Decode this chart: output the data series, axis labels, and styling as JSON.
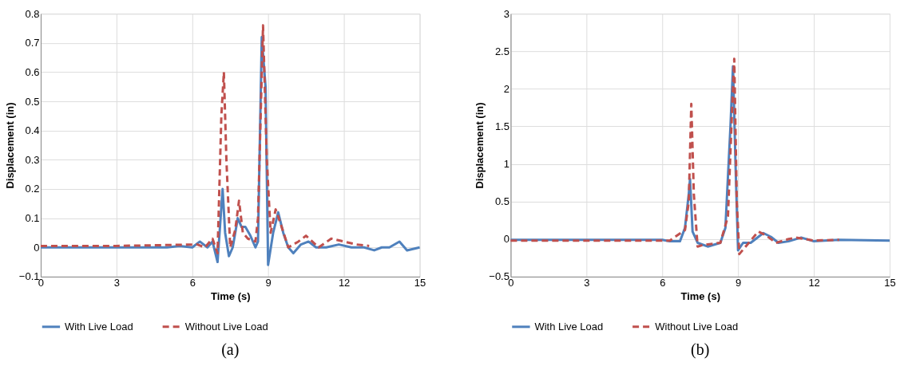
{
  "chart_data": [
    {
      "type": "line",
      "xlabel": "Time (s)",
      "ylabel": "Displacement (in)",
      "xlim": [
        0,
        15
      ],
      "xticks": [
        0,
        3,
        6,
        9,
        12,
        15
      ],
      "ylim": [
        -0.1,
        0.8
      ],
      "yticks": [
        -0.1,
        0,
        0.1,
        0.2,
        0.3,
        0.4,
        0.5,
        0.6,
        0.7,
        0.8
      ],
      "grid": true,
      "legend": "bottom",
      "annotations": [
        "(a)"
      ],
      "series": [
        {
          "name": "With Live Load",
          "color": "#4f81bd",
          "line_style": "solid",
          "x": [
            0,
            3,
            5,
            5.5,
            6,
            6.3,
            6.6,
            6.8,
            7.0,
            7.2,
            7.3,
            7.45,
            7.6,
            7.8,
            7.95,
            8.1,
            8.3,
            8.5,
            8.6,
            8.75,
            8.9,
            9.0,
            9.2,
            9.4,
            9.6,
            9.8,
            10.0,
            10.3,
            10.6,
            10.9,
            11.3,
            11.8,
            12.3,
            12.8,
            13.2,
            13.5,
            13.8,
            14.2,
            14.5,
            15
          ],
          "values": [
            0,
            0,
            0,
            0.005,
            0,
            0.02,
            0,
            0.02,
            -0.05,
            0.2,
            0.05,
            -0.03,
            0,
            0.1,
            0.07,
            0.07,
            0.04,
            0,
            0.02,
            0.72,
            0.55,
            -0.06,
            0.05,
            0.12,
            0.05,
            0,
            -0.02,
            0.01,
            0.02,
            0,
            0,
            0.01,
            0,
            0,
            -0.01,
            0,
            0,
            0.02,
            -0.01,
            0
          ]
        },
        {
          "name": "Without Live Load",
          "color": "#c0504d",
          "line_style": "dashed",
          "x": [
            0,
            3,
            6.2,
            6.5,
            6.8,
            7.0,
            7.15,
            7.25,
            7.35,
            7.5,
            7.7,
            7.85,
            8.0,
            8.2,
            8.5,
            8.6,
            8.8,
            8.95,
            9.1,
            9.3,
            9.5,
            9.8,
            10.2,
            10.5,
            11.0,
            11.5,
            12,
            12.5,
            13
          ],
          "values": [
            0.005,
            0.005,
            0.01,
            0,
            0.03,
            -0.02,
            0.45,
            0.6,
            0.3,
            0,
            0.06,
            0.16,
            0.05,
            0.03,
            0.02,
            0.1,
            0.76,
            0.3,
            0.05,
            0.13,
            0.08,
            0,
            0.02,
            0.04,
            0,
            0.03,
            0.02,
            0.01,
            0.005
          ]
        }
      ]
    },
    {
      "type": "line",
      "xlabel": "Time (s)",
      "ylabel": "Displacement (in)",
      "xlim": [
        0,
        15
      ],
      "xticks": [
        0,
        3,
        6,
        9,
        12,
        15
      ],
      "ylim": [
        -0.5,
        3
      ],
      "yticks": [
        -0.5,
        0,
        0.5,
        1,
        1.5,
        2,
        2.5,
        3
      ],
      "grid": true,
      "legend": "bottom",
      "annotations": [
        "(b)"
      ],
      "series": [
        {
          "name": "With Live Load",
          "color": "#4f81bd",
          "line_style": "solid",
          "x": [
            0,
            6,
            6.3,
            6.7,
            6.9,
            7.05,
            7.1,
            7.2,
            7.4,
            7.8,
            8.3,
            8.5,
            8.7,
            8.8,
            8.9,
            9.0,
            9.2,
            9.5,
            10.0,
            10.3,
            10.6,
            11.0,
            11.5,
            12,
            13,
            15
          ],
          "values": [
            -0.01,
            -0.01,
            -0.03,
            -0.03,
            0.15,
            0.6,
            0.8,
            0.1,
            -0.05,
            -0.1,
            -0.05,
            0.15,
            1.5,
            2.3,
            1.0,
            -0.15,
            -0.05,
            -0.05,
            0.08,
            0.03,
            -0.05,
            -0.03,
            0.02,
            -0.03,
            -0.01,
            -0.02
          ]
        },
        {
          "name": "Without Live Load",
          "color": "#c0504d",
          "line_style": "dashed",
          "x": [
            0,
            6.3,
            6.9,
            7.05,
            7.15,
            7.25,
            7.4,
            7.6,
            8.3,
            8.6,
            8.75,
            8.85,
            8.95,
            9.05,
            9.3,
            9.8,
            10.1,
            10.5,
            11.0,
            11.3,
            12,
            13
          ],
          "values": [
            -0.02,
            -0.02,
            0.12,
            0.5,
            1.8,
            0.6,
            -0.1,
            -0.08,
            -0.05,
            0.3,
            1.6,
            2.4,
            0.5,
            -0.2,
            -0.1,
            0.1,
            0.05,
            -0.05,
            0,
            0.02,
            -0.02,
            -0.01
          ]
        }
      ]
    }
  ]
}
